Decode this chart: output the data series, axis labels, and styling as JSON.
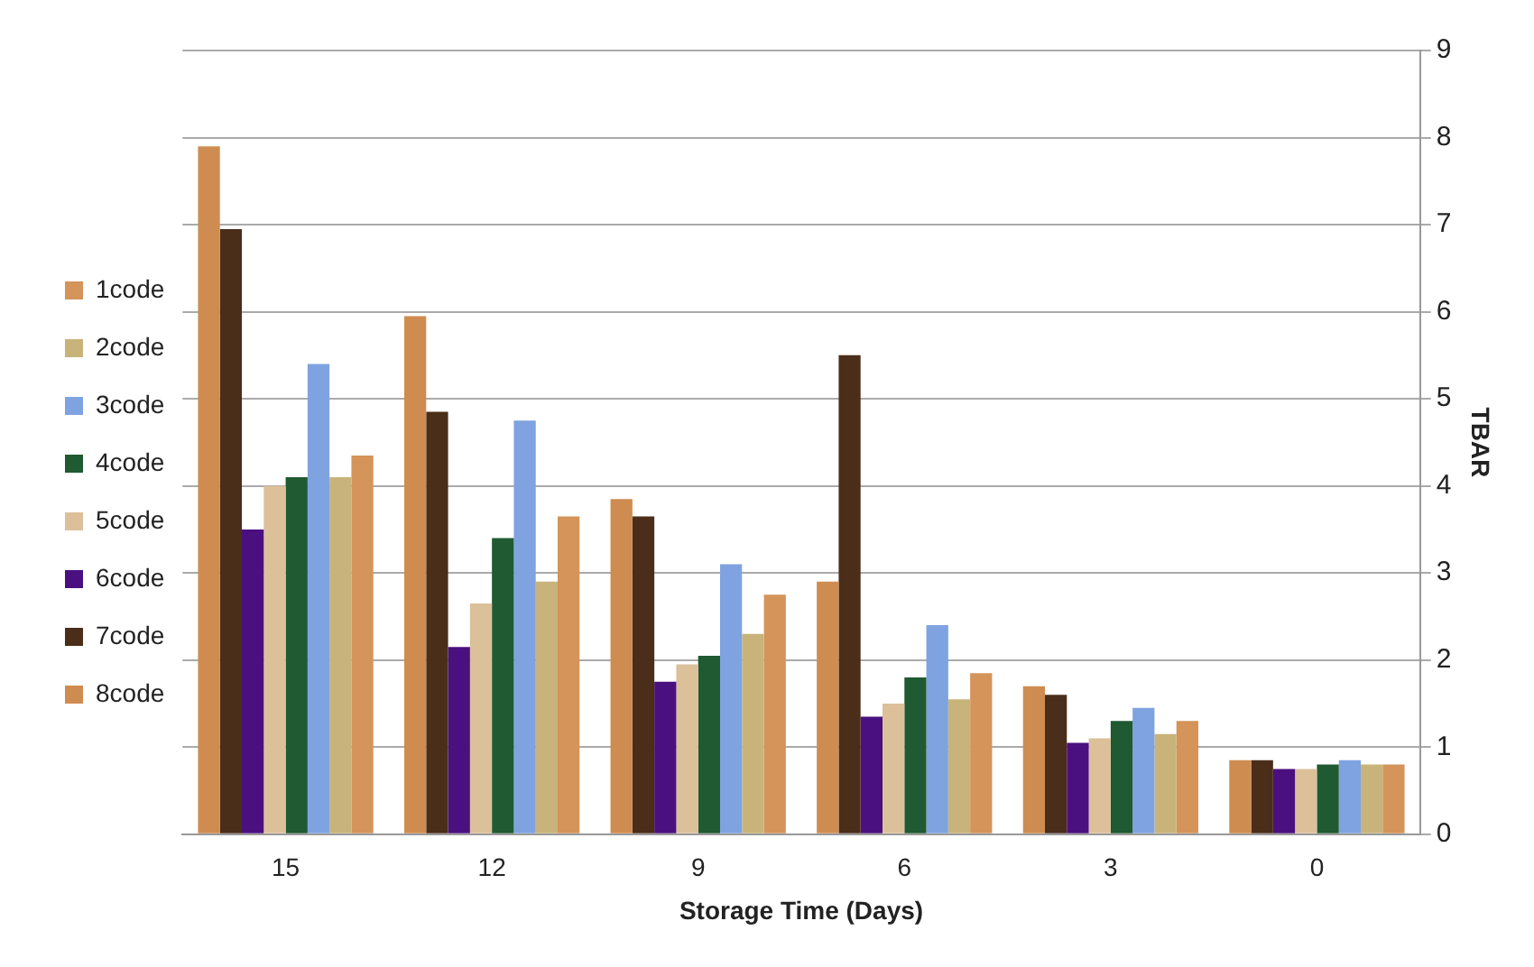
{
  "chart_data": {
    "type": "bar",
    "xlabel": "Storage Time (Days)",
    "ylabel": "TBAR",
    "categories": [
      "15",
      "12",
      "9",
      "6",
      "3",
      "0"
    ],
    "series": [
      {
        "name": "1code",
        "color": "#d4945a",
        "values": [
          4.35,
          3.65,
          2.75,
          1.85,
          1.3,
          0.8
        ]
      },
      {
        "name": "2code",
        "color": "#c8b47a",
        "values": [
          4.1,
          2.9,
          2.3,
          1.55,
          1.15,
          0.8
        ]
      },
      {
        "name": "3code",
        "color": "#7fa3e0",
        "values": [
          5.4,
          4.75,
          3.1,
          2.4,
          1.45,
          0.85
        ]
      },
      {
        "name": "4code",
        "color": "#1f5a32",
        "values": [
          4.1,
          3.4,
          2.05,
          1.8,
          1.3,
          0.8
        ]
      },
      {
        "name": "5code",
        "color": "#dcc09a",
        "values": [
          4.0,
          2.65,
          1.95,
          1.5,
          1.1,
          0.75
        ]
      },
      {
        "name": "6code",
        "color": "#4b1080",
        "values": [
          3.5,
          2.15,
          1.75,
          1.35,
          1.05,
          0.75
        ]
      },
      {
        "name": "7code",
        "color": "#4a2e1a",
        "values": [
          6.95,
          4.85,
          3.65,
          5.5,
          1.6,
          0.85
        ]
      },
      {
        "name": "8code",
        "color": "#cf8c50",
        "values": [
          7.9,
          5.95,
          3.85,
          2.9,
          1.7,
          0.85
        ]
      }
    ],
    "ylim": [
      0,
      9
    ],
    "yticks": [
      0,
      1,
      2,
      3,
      4,
      5,
      6,
      7,
      8,
      9
    ],
    "grid": "y",
    "legend": "left"
  }
}
